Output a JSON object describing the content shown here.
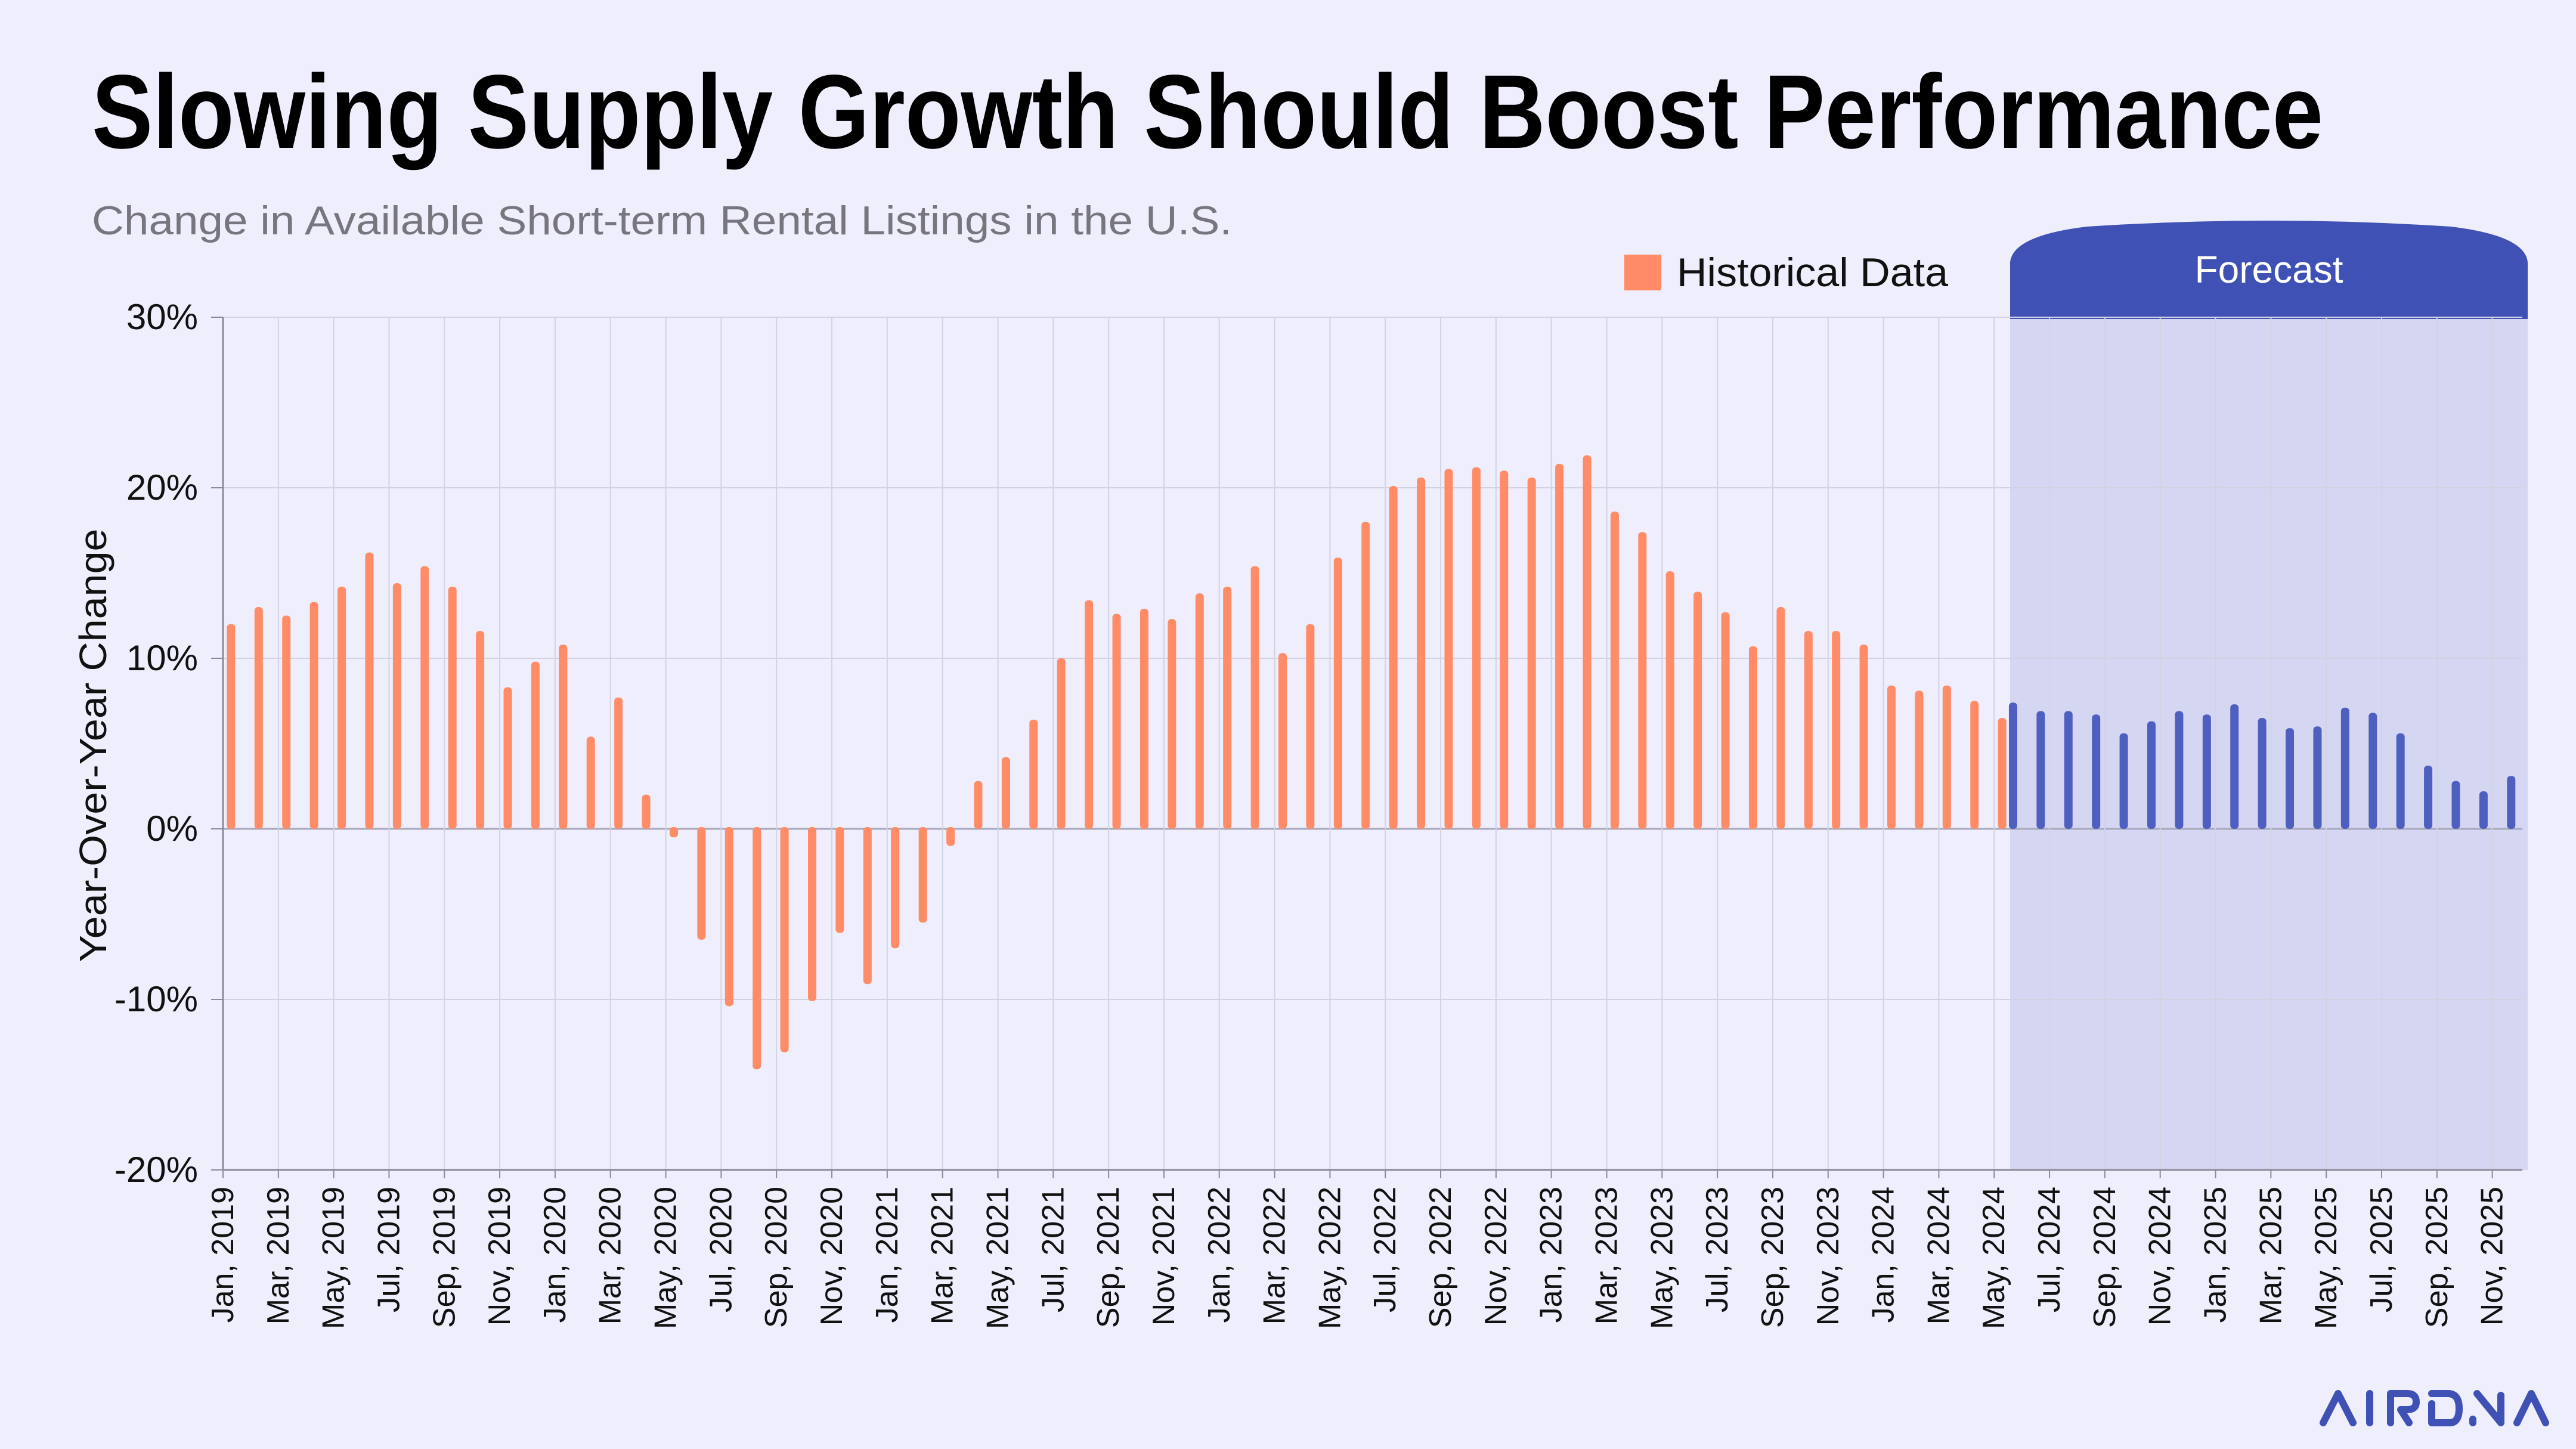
{
  "title": "Slowing Supply Growth Should Boost Performance",
  "subtitle": "Change in Available Short-term Rental Listings in the U.S.",
  "logo_text": "AIRDNA",
  "colors": {
    "background": "#EEEEFC",
    "historical": "#FF8C66",
    "forecast": "#4F5FBF",
    "forecast_header": "#3F51B5",
    "forecast_shading": "#D5D6F2",
    "logo": "#3F51B5"
  },
  "chart_data": {
    "type": "bar",
    "title": "Slowing Supply Growth Should Boost Performance",
    "subtitle": "Change in Available Short-term Rental Listings in the U.S.",
    "xlabel": "",
    "ylabel": "Year-Over-Year Change",
    "ylim": [
      -20,
      30
    ],
    "y_tick_labels": [
      "30%",
      "20%",
      "10%",
      "0%",
      "-10%",
      "-20%"
    ],
    "y_tick_values": [
      30,
      20,
      10,
      0,
      -10,
      -20
    ],
    "x_tick_labels": [
      "Jan, 2019",
      "Mar, 2019",
      "May, 2019",
      "Jul, 2019",
      "Sep, 2019",
      "Nov, 2019",
      "Jan, 2020",
      "Mar, 2020",
      "May, 2020",
      "Jul, 2020",
      "Sep, 2020",
      "Nov, 2020",
      "Jan, 2021",
      "Mar, 2021",
      "May, 2021",
      "Jul, 2021",
      "Sep, 2021",
      "Nov, 2021",
      "Jan, 2022",
      "Mar, 2022",
      "May, 2022",
      "Jul, 2022",
      "Sep, 2022",
      "Nov, 2022",
      "Jan, 2023",
      "Mar, 2023",
      "May, 2023",
      "Jul, 2023",
      "Sep, 2023",
      "Nov, 2023",
      "Jan, 2024",
      "Mar, 2024",
      "May, 2024",
      "Jul, 2024",
      "Sep, 2024",
      "Nov, 2024",
      "Jan, 2025",
      "Mar, 2025",
      "May, 2025",
      "Jul, 2025",
      "Sep, 2025",
      "Nov, 2025"
    ],
    "grid": true,
    "legend": {
      "position": "top-right",
      "entries": [
        "Historical Data"
      ]
    },
    "forecast_region_label": "Forecast",
    "series": [
      {
        "name": "Historical Data",
        "color": "#FF8C66",
        "start": "Jan, 2019",
        "values": [
          11.9,
          12.9,
          12.4,
          13.2,
          14.1,
          16.1,
          14.3,
          15.3,
          14.1,
          11.5,
          8.2,
          9.7,
          10.7,
          5.3,
          7.6,
          1.9,
          -0.5,
          -6.5,
          -10.4,
          -14.1,
          -13.1,
          -10.1,
          -6.1,
          -9.1,
          -7.0,
          -5.5,
          -1.0,
          2.7,
          4.1,
          6.3,
          9.9,
          13.3,
          12.5,
          12.8,
          12.2,
          13.7,
          14.1,
          15.3,
          10.2,
          11.9,
          15.8,
          17.9,
          20.0,
          20.5,
          21.0,
          21.1,
          20.9,
          20.5,
          21.3,
          21.8,
          18.5,
          17.3,
          15.0,
          13.8,
          12.6,
          10.6,
          12.9,
          11.5,
          11.5,
          10.7,
          8.3,
          8.0,
          8.3,
          7.4,
          6.4
        ]
      },
      {
        "name": "",
        "color": "#4F5FBF",
        "start": "May, 2024",
        "values": [
          7.3,
          6.8,
          6.8,
          6.6,
          5.5,
          6.2,
          6.8,
          6.6,
          7.2,
          6.4,
          5.8,
          5.9,
          7.0,
          6.7,
          5.5,
          3.6,
          2.7,
          2.1,
          3.0
        ]
      }
    ]
  }
}
